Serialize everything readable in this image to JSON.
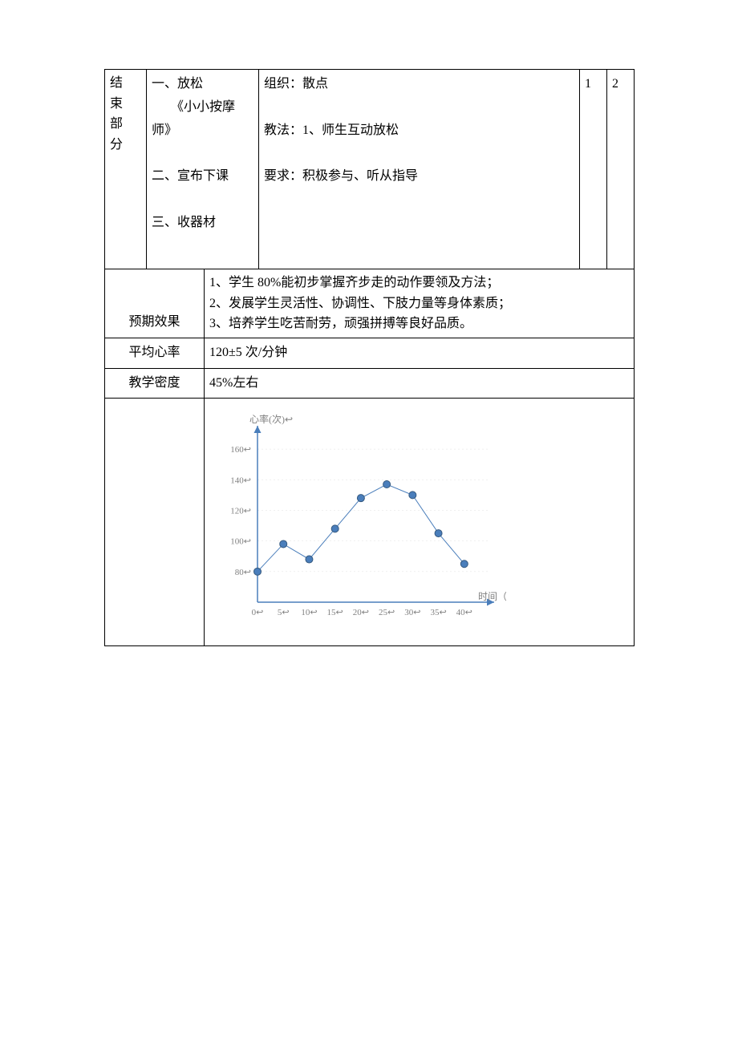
{
  "row1": {
    "section_chars": [
      "结",
      "束",
      "部",
      "分"
    ],
    "col2_lines": [
      "一、放松",
      "　　《小小按摩师》",
      "",
      "二、宣布下课",
      "",
      "三、收器材"
    ],
    "col3_lines": [
      "组织：散点",
      "",
      "教法：1、师生互动放松",
      "",
      "要求：积极参与、听从指导"
    ],
    "col4": "1",
    "col5": "2"
  },
  "expected": {
    "label": "预期效果",
    "lines": [
      "1、学生 80%能初步掌握齐步走的动作要领及方法；",
      "2、发展学生灵活性、协调性、下肢力量等身体素质；",
      "3、培养学生吃苦耐劳，顽强拼搏等良好品质。"
    ]
  },
  "avg_hr": {
    "label": "平均心率",
    "value": "120±5 次/分钟"
  },
  "density": {
    "label": "教学密度",
    "value": "45%左右"
  },
  "chart": {
    "type": "line",
    "y_title": "心率(次)",
    "x_title": "时间（m）",
    "x_ticks": [
      0,
      5,
      10,
      15,
      20,
      25,
      30,
      35,
      40
    ],
    "y_ticks": [
      80,
      100,
      120,
      140,
      160
    ],
    "xlim": [
      0,
      45
    ],
    "ylim": [
      60,
      170
    ],
    "points": [
      [
        0,
        80
      ],
      [
        5,
        98
      ],
      [
        10,
        88
      ],
      [
        15,
        108
      ],
      [
        20,
        128
      ],
      [
        25,
        137
      ],
      [
        30,
        130
      ],
      [
        35,
        105
      ],
      [
        40,
        85
      ]
    ],
    "line_color": "#4a7ebb",
    "marker_fill": "#4a7ebb",
    "marker_stroke": "#35597f",
    "marker_radius": 4.5,
    "axis_color": "#4a7ebb",
    "grid_color": "#e0e0e0",
    "line_width": 1,
    "bg_color": "#ffffff",
    "label_color": "#808080",
    "title_color": "#808080",
    "font_size_label": 11,
    "font_size_title": 12
  }
}
